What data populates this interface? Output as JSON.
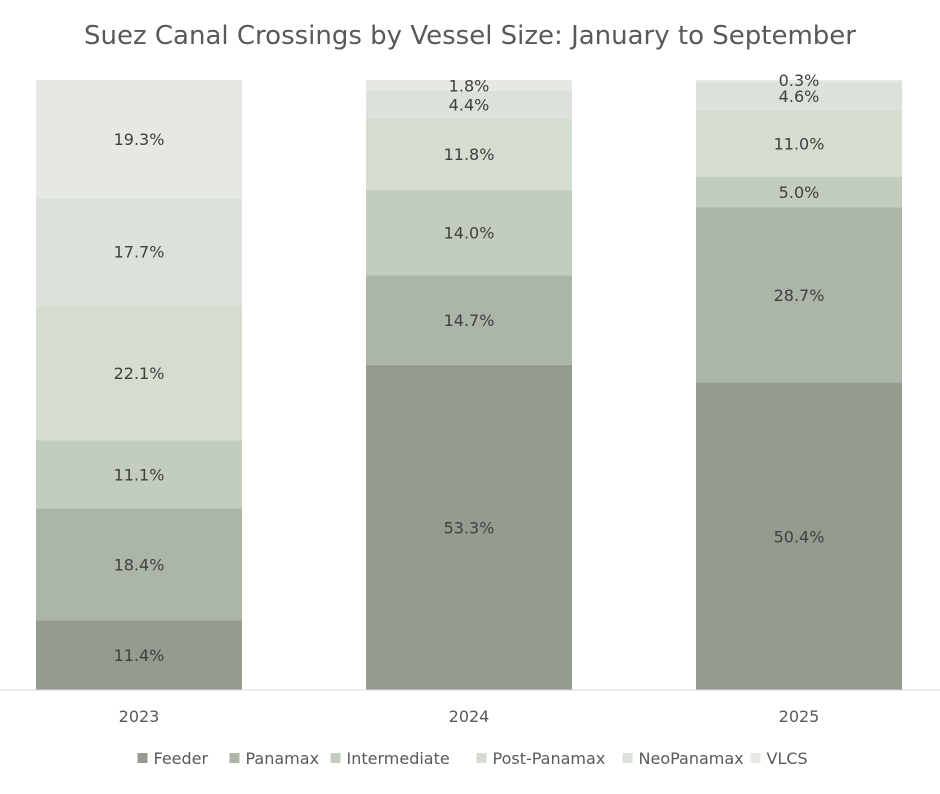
{
  "chart_data": {
    "type": "bar",
    "stacked": true,
    "normalized": true,
    "title": "Suez Canal Crossings by Vessel Size: January to September",
    "xlabel": "",
    "ylabel": "",
    "ylim": [
      0,
      100
    ],
    "grid": false,
    "legend_position": "bottom",
    "categories": [
      "2023",
      "2024",
      "2025"
    ],
    "series": [
      {
        "name": "Feeder",
        "color": "#939c8f",
        "values": [
          11.4,
          53.3,
          50.4
        ],
        "labels": [
          "11.4%",
          "53.3%",
          "50.4%"
        ]
      },
      {
        "name": "Panamax",
        "color": "#abb5a8",
        "values": [
          18.4,
          14.7,
          28.7
        ],
        "labels": [
          "18.4%",
          "14.7%",
          "28.7%"
        ]
      },
      {
        "name": "Intermediate",
        "color": "#c3cdbe",
        "values": [
          11.1,
          14.0,
          5.0
        ],
        "labels": [
          "11.1%",
          "14.0%",
          "5.0%"
        ]
      },
      {
        "name": "Post-Panamax",
        "color": "#d4ddcf",
        "values": [
          22.1,
          11.8,
          11.0
        ],
        "labels": [
          "22.1%",
          "11.8%",
          "11.0%"
        ]
      },
      {
        "name": "NeoPanamax",
        "color": "#dce1db",
        "values": [
          17.7,
          4.4,
          4.6
        ],
        "labels": [
          "17.7%",
          "4.4%",
          "4.6%"
        ]
      },
      {
        "name": "VLCS",
        "color": "#e6e8e3",
        "values": [
          19.3,
          1.8,
          0.3
        ],
        "labels": [
          "19.3%",
          "1.8%",
          "0.3%"
        ]
      }
    ]
  }
}
